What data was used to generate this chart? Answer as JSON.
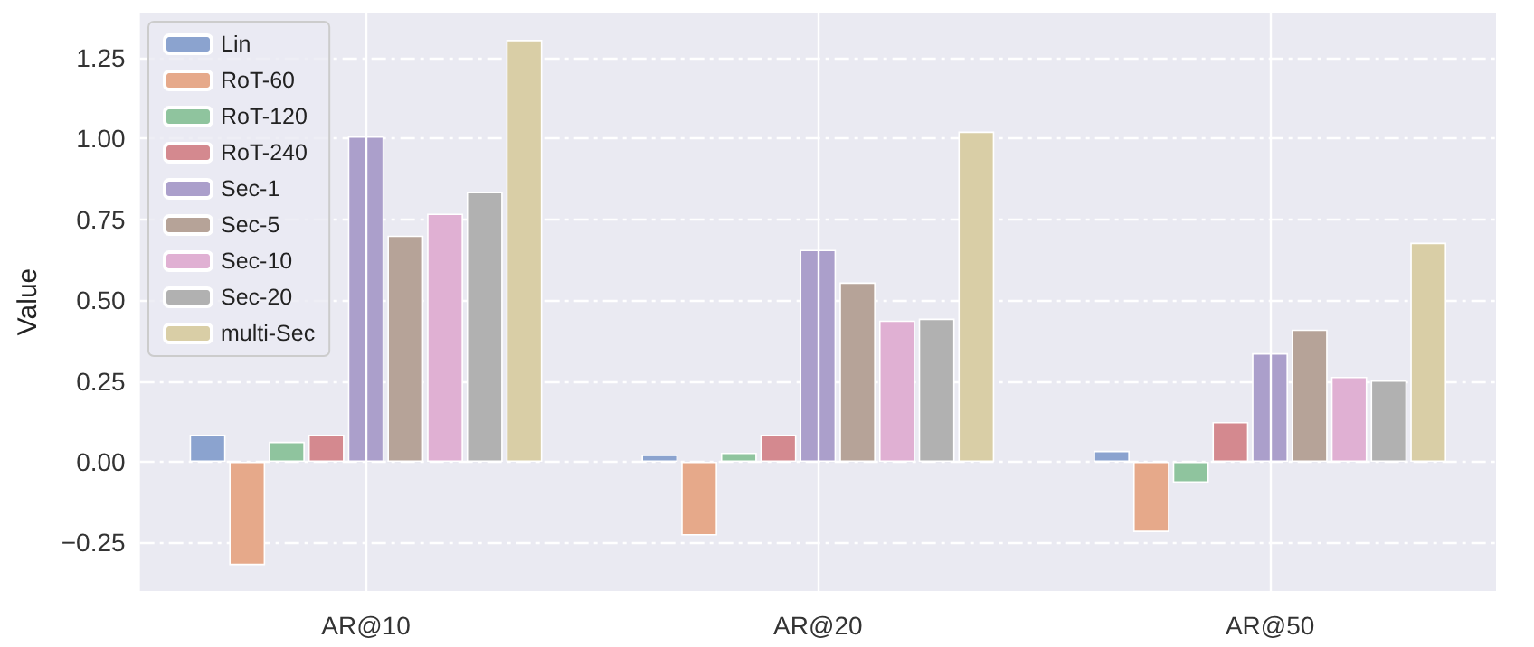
{
  "chart_data": {
    "type": "bar",
    "ylabel": "Value",
    "categories": [
      "AR@10",
      "AR@20",
      "AR@50"
    ],
    "series": [
      {
        "name": "Lin",
        "color": "#8ba3cf",
        "values": [
          0.084,
          0.022,
          0.034
        ]
      },
      {
        "name": "RoT-60",
        "color": "#e6a98a",
        "values": [
          -0.32,
          -0.228,
          -0.218
        ]
      },
      {
        "name": "RoT-120",
        "color": "#8fc49e",
        "values": [
          0.062,
          0.028,
          -0.065
        ]
      },
      {
        "name": "RoT-240",
        "color": "#d4898f",
        "values": [
          0.084,
          0.084,
          0.123
        ]
      },
      {
        "name": "Sec-1",
        "color": "#ab9fcb",
        "values": [
          1.007,
          0.656,
          0.336
        ]
      },
      {
        "name": "Sec-5",
        "color": "#b6a398",
        "values": [
          0.7,
          0.555,
          0.409
        ]
      },
      {
        "name": "Sec-10",
        "color": "#e0b0d3",
        "values": [
          0.768,
          0.437,
          0.263
        ]
      },
      {
        "name": "Sec-20",
        "color": "#b1b1b1",
        "values": [
          0.835,
          0.443,
          0.252
        ]
      },
      {
        "name": "multi-Sec",
        "color": "#d9cea6",
        "values": [
          1.306,
          1.022,
          0.678
        ]
      }
    ],
    "ylim": [
      -0.4,
      1.39
    ],
    "yticks": [
      {
        "value": -0.25,
        "label": "−0.25"
      },
      {
        "value": 0,
        "label": "0.00"
      },
      {
        "value": 0.25,
        "label": "0.25"
      },
      {
        "value": 0.5,
        "label": "0.50"
      },
      {
        "value": 0.75,
        "label": "0.75"
      },
      {
        "value": 1,
        "label": "1.00"
      },
      {
        "value": 1.25,
        "label": "1.25"
      }
    ],
    "grid": true,
    "legend": "top left"
  }
}
